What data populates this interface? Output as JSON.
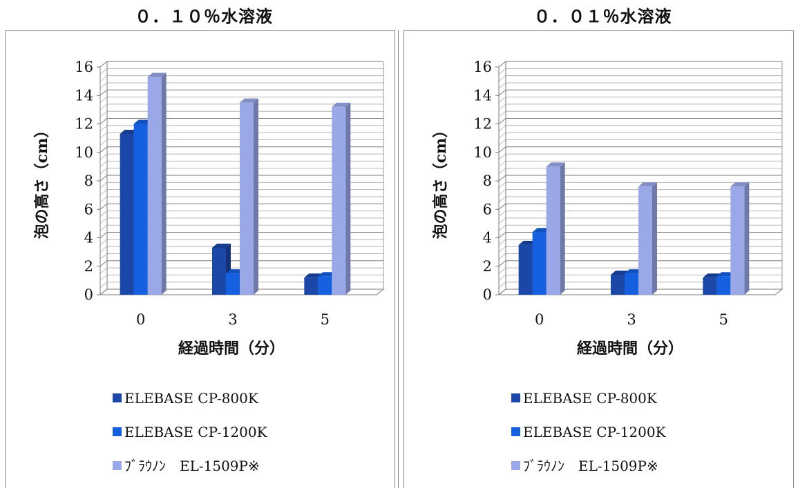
{
  "charts": [
    {
      "title": "０．１０％水溶液",
      "chart_data": {
        "type": "bar",
        "categories": [
          "0",
          "3",
          "5"
        ],
        "series": [
          {
            "name": "ELEBASE CP-800K",
            "values": [
              11.3,
              3.3,
              1.2
            ],
            "color": "#1a47a8"
          },
          {
            "name": "ELEBASE CP-1200K",
            "values": [
              12.0,
              1.5,
              1.3
            ],
            "color": "#1560e0"
          },
          {
            "name": "ﾌﾞﾗｳﾉﾝ　EL-1509P※",
            "values": [
              15.3,
              13.5,
              13.2
            ],
            "color": "#9aa8e8"
          }
        ],
        "xlabel": "経過時間（分）",
        "ylabel": "泡の高さ（cm）",
        "ylim": [
          0,
          16
        ],
        "yticks": [
          "0",
          "2",
          "4",
          "6",
          "8",
          "10",
          "12",
          "14",
          "16"
        ],
        "grid": true,
        "legend": "bottom"
      }
    },
    {
      "title": "０．０１％水溶液",
      "chart_data": {
        "type": "bar",
        "categories": [
          "0",
          "3",
          "5"
        ],
        "series": [
          {
            "name": "ELEBASE CP-800K",
            "values": [
              3.5,
              1.4,
              1.2
            ],
            "color": "#1a47a8"
          },
          {
            "name": "ELEBASE CP-1200K",
            "values": [
              4.4,
              1.5,
              1.3
            ],
            "color": "#1560e0"
          },
          {
            "name": "ﾌﾞﾗｳﾉﾝ　EL-1509P※",
            "values": [
              9.0,
              7.6,
              7.6
            ],
            "color": "#9aa8e8"
          }
        ],
        "xlabel": "経過時間（分）",
        "ylabel": "泡の高さ（cm）",
        "ylim": [
          0,
          16
        ],
        "yticks": [
          "0",
          "2",
          "4",
          "6",
          "8",
          "10",
          "12",
          "14",
          "16"
        ],
        "grid": true,
        "legend": "bottom"
      }
    }
  ]
}
